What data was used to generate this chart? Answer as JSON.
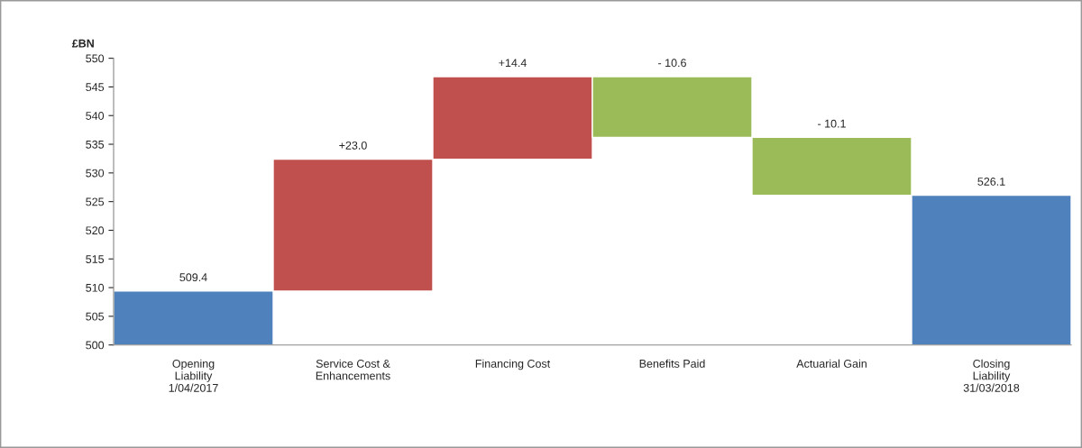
{
  "chart_data": {
    "type": "bar",
    "ylabel": "£BN",
    "categories": [
      "Opening\nLiability\n1/04/2017",
      "Service Cost &\nEnhancements",
      "Financing Cost",
      "Benefits Paid",
      "Actuarial Gain",
      "Closing\nLiability\n31/03/2018"
    ],
    "base": [
      500,
      509.4,
      532.4,
      546.8,
      536.2,
      500
    ],
    "values": [
      9.4,
      23.0,
      14.4,
      -10.6,
      -10.1,
      26.1
    ],
    "colors": [
      "#4f81bd",
      "#c0504d",
      "#c0504d",
      "#9bbb59",
      "#9bbb59",
      "#4f81bd"
    ],
    "value_labels": [
      "509.4",
      "+23.0",
      "+14.4",
      "- 10.6",
      "- 10.1",
      "526.1"
    ],
    "ylim": [
      500,
      550
    ],
    "yticks": [
      500,
      505,
      510,
      515,
      520,
      525,
      530,
      535,
      540,
      545,
      550
    ],
    "grid": false,
    "legend": false
  }
}
